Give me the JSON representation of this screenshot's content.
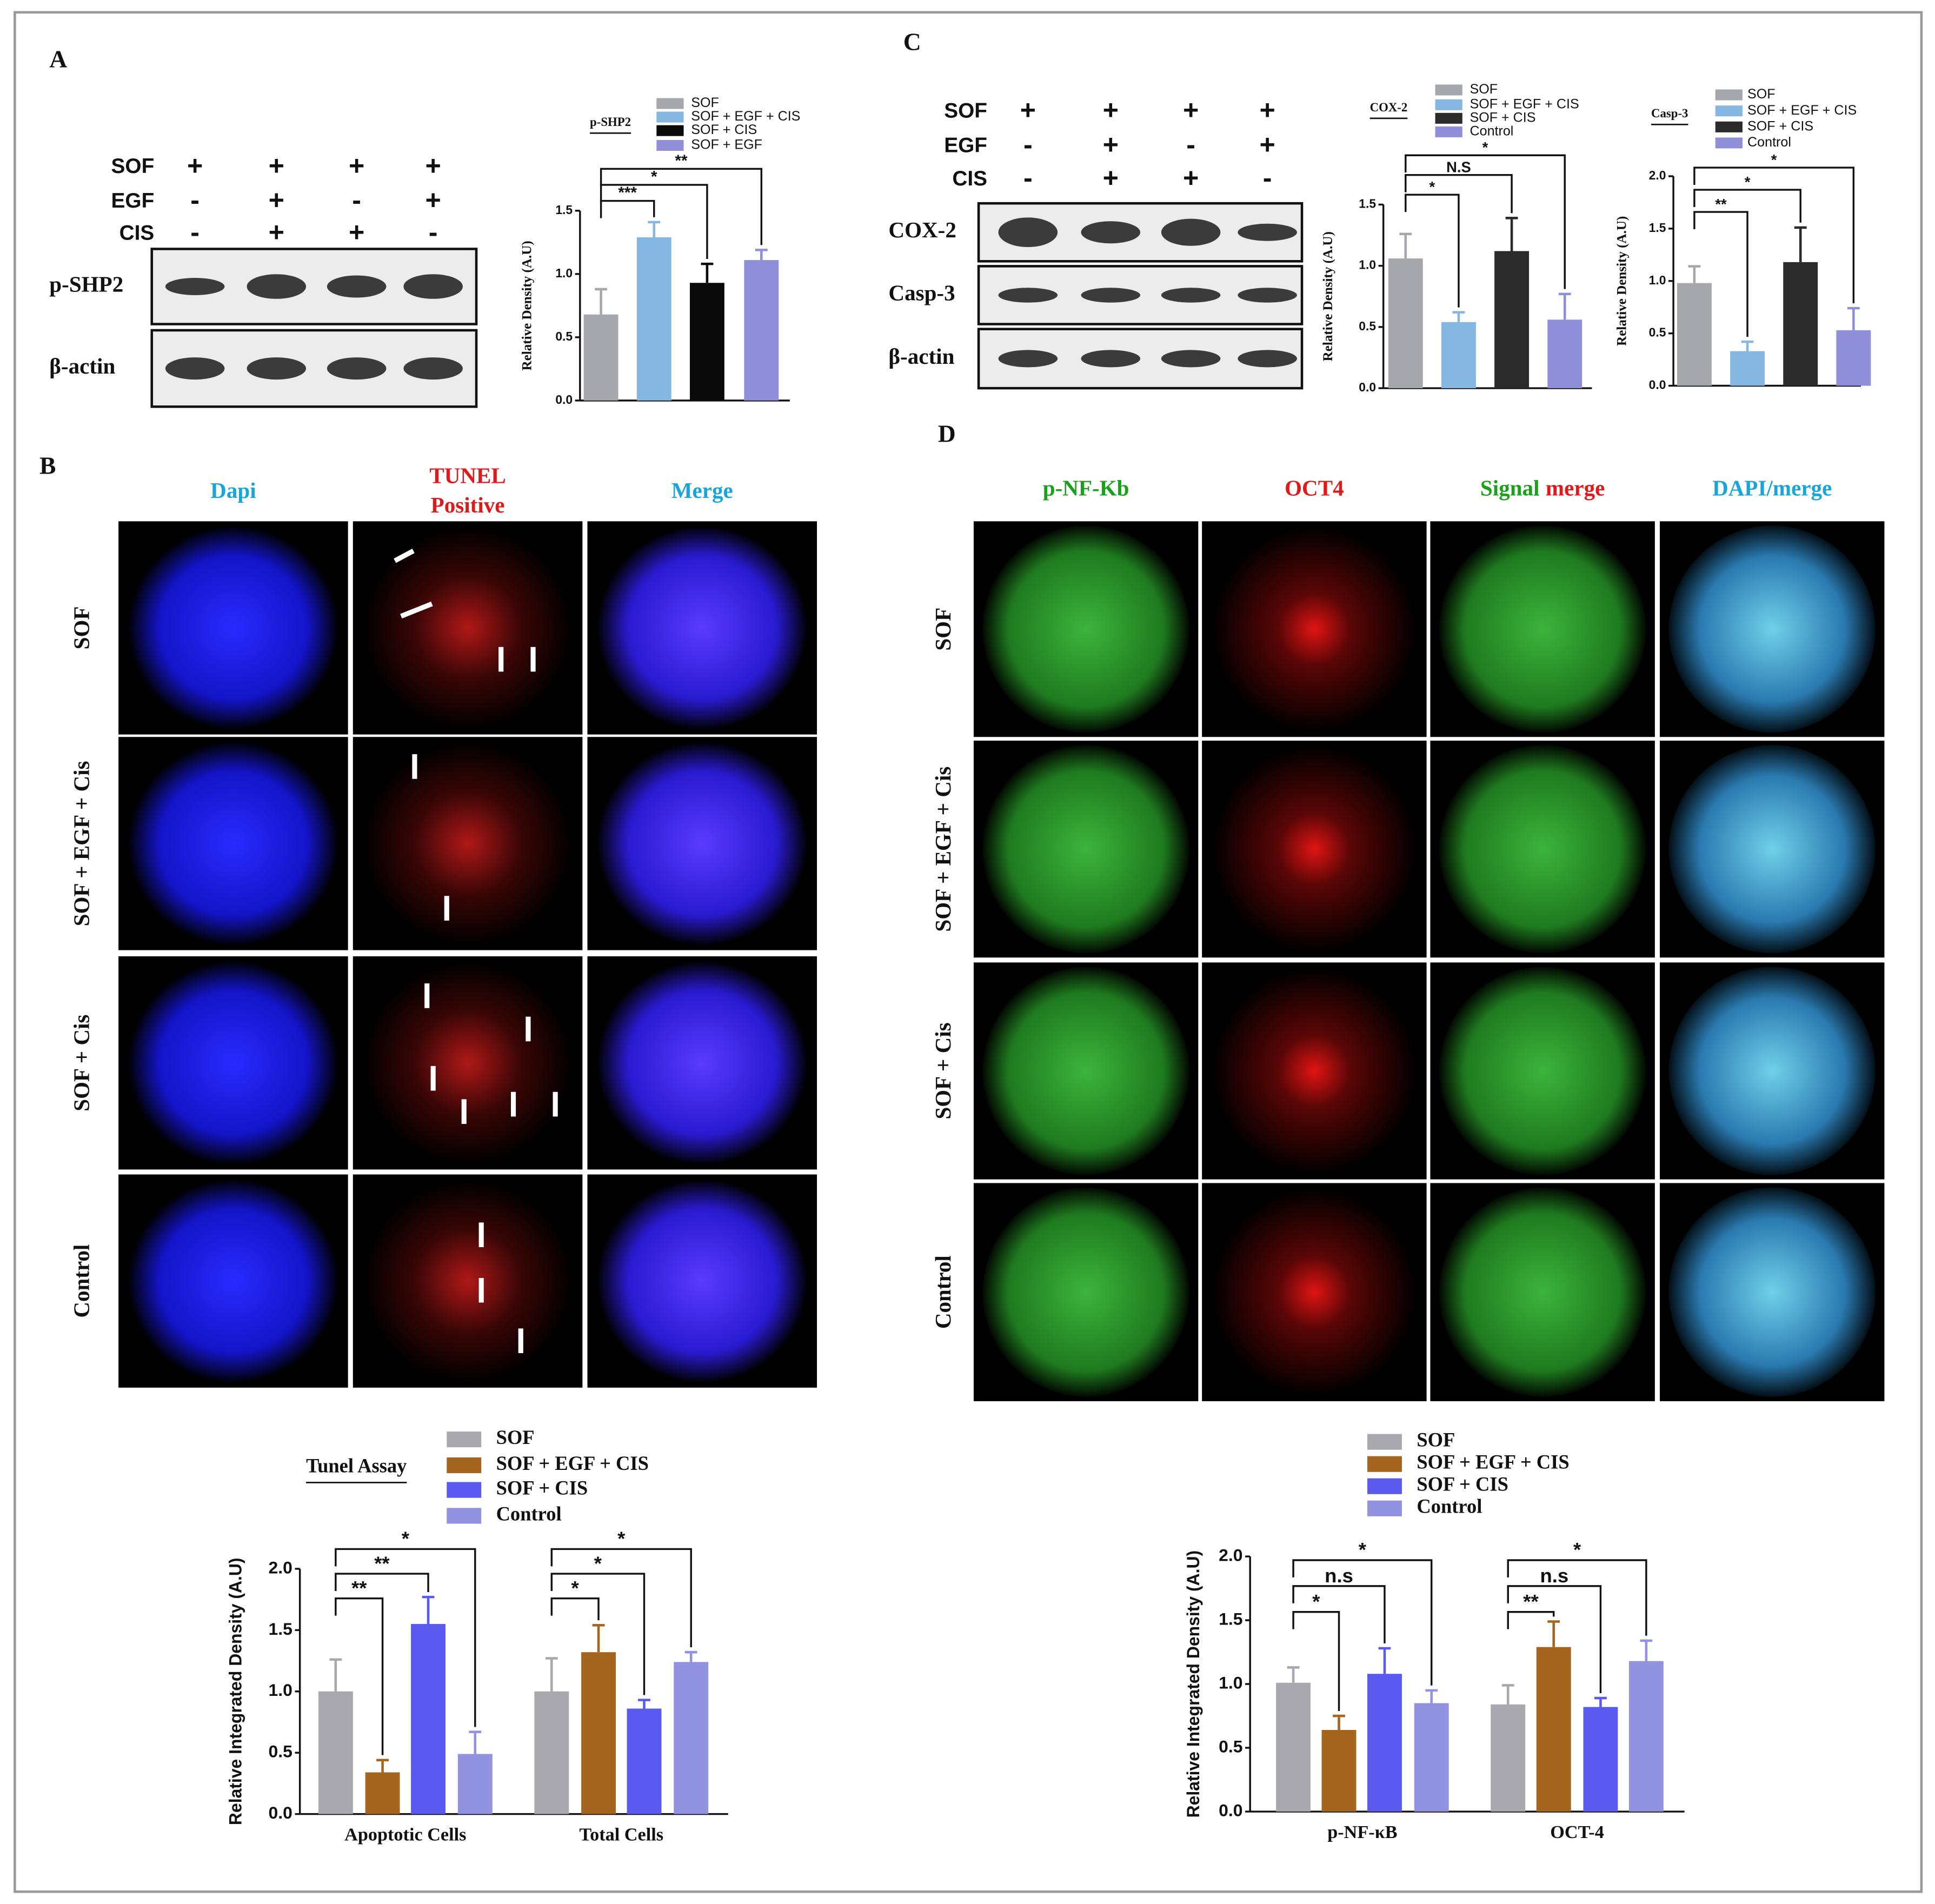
{
  "labels": {
    "a": "A",
    "b": "B",
    "c": "C",
    "d": "D"
  },
  "blot_a": {
    "treatments": [
      {
        "name": "SOF",
        "signs": [
          "+",
          "+",
          "+",
          "+"
        ]
      },
      {
        "name": "EGF",
        "signs": [
          "-",
          "+",
          "-",
          "+"
        ]
      },
      {
        "name": "CIS",
        "signs": [
          "-",
          "+",
          "+",
          "-"
        ]
      }
    ],
    "bands": [
      "p-SHP2",
      "β-actin"
    ]
  },
  "blot_c": {
    "treatments": [
      {
        "name": "SOF",
        "signs": [
          "+",
          "+",
          "+",
          "+"
        ]
      },
      {
        "name": "EGF",
        "signs": [
          "-",
          "+",
          "-",
          "+"
        ]
      },
      {
        "name": "CIS",
        "signs": [
          "-",
          "+",
          "+",
          "-"
        ]
      }
    ],
    "bands": [
      "COX-2",
      "Casp-3",
      "β-actin"
    ]
  },
  "images_b": {
    "columns": [
      [
        "Dapi"
      ],
      [
        "TUNEL",
        "Positive"
      ],
      [
        "Merge"
      ]
    ],
    "rows": [
      "SOF",
      "SOF + EGF + Cis",
      "SOF + Cis",
      "Control"
    ]
  },
  "images_d": {
    "columns": [
      [
        "p-NF-Kb"
      ],
      [
        "OCT4"
      ],
      [
        "Signal",
        "merge"
      ],
      [
        "DAPI/merge"
      ]
    ],
    "rows": [
      "SOF",
      "SOF + EGF + Cis",
      "SOF + Cis",
      "Control"
    ]
  },
  "chart_data": [
    {
      "type": "bar",
      "legend_title": "p-SHP2",
      "ylabel": "Relative Density (A.U)",
      "categories": [
        "SOF",
        "SOF + EGF + CIS",
        "SOF + CIS",
        "SOF + EGF"
      ],
      "colors": [
        "#a6a6ad",
        "#86b6e2",
        "#0a0a0a",
        "#8e8fd8"
      ],
      "values": [
        0.68,
        1.29,
        0.93,
        1.11
      ],
      "errors": [
        0.2,
        0.12,
        0.15,
        0.08
      ],
      "ylim": [
        0,
        1.5
      ],
      "yticks": [
        {
          "value": 0,
          "label": "0.0"
        },
        {
          "value": 0.5,
          "label": "0.5"
        },
        {
          "value": 1,
          "label": "1.0"
        },
        {
          "value": 1.5,
          "label": "1.5"
        }
      ],
      "brackets": [
        {
          "from": 0,
          "to": 1,
          "label": "***"
        },
        {
          "from": 0,
          "to": 2,
          "label": "*"
        },
        {
          "from": 0,
          "to": 3,
          "label": "**"
        }
      ]
    },
    {
      "type": "bar",
      "legend_title": "COX-2",
      "ylabel": "Relative Density (A.U)",
      "categories": [
        "SOF",
        "SOF + EGF + CIS",
        "SOF + CIS",
        "Control"
      ],
      "colors": [
        "#a6a6ad",
        "#86b6e2",
        "#2b2b2b",
        "#8e8fd8"
      ],
      "values": [
        1.06,
        0.54,
        1.12,
        0.56
      ],
      "errors": [
        0.2,
        0.08,
        0.27,
        0.21
      ],
      "ylim": [
        0,
        1.5
      ],
      "yticks": [
        {
          "value": 0,
          "label": "0.0"
        },
        {
          "value": 0.5,
          "label": "0.5"
        },
        {
          "value": 1,
          "label": "1.0"
        },
        {
          "value": 1.5,
          "label": "1.5"
        }
      ],
      "brackets": [
        {
          "from": 0,
          "to": 1,
          "label": "*"
        },
        {
          "from": 0,
          "to": 2,
          "label": "N.S"
        },
        {
          "from": 0,
          "to": 3,
          "label": "*"
        }
      ]
    },
    {
      "type": "bar",
      "legend_title": "Casp-3",
      "ylabel": "Relative Density (A.U)",
      "categories": [
        "SOF",
        "SOF + EGF + CIS",
        "SOF + CIS",
        "Control"
      ],
      "colors": [
        "#a6a6ad",
        "#86b6e2",
        "#2b2b2b",
        "#8e8fd8"
      ],
      "values": [
        0.98,
        0.33,
        1.18,
        0.53
      ],
      "errors": [
        0.16,
        0.09,
        0.33,
        0.21
      ],
      "ylim": [
        0,
        2
      ],
      "yticks": [
        {
          "value": 0,
          "label": "0.0"
        },
        {
          "value": 0.5,
          "label": "0.5"
        },
        {
          "value": 1,
          "label": "1.0"
        },
        {
          "value": 1.5,
          "label": "1.5"
        },
        {
          "value": 2,
          "label": "2.0"
        }
      ],
      "brackets": [
        {
          "from": 0,
          "to": 1,
          "label": "**"
        },
        {
          "from": 0,
          "to": 2,
          "label": "*"
        },
        {
          "from": 0,
          "to": 3,
          "label": "*"
        }
      ]
    },
    {
      "type": "grouped_bar",
      "legend_title": "Tunel Assay",
      "ylabel": "Relative Integrated Density (A.U)",
      "categories": [
        "Apoptotic Cells",
        "Total Cells"
      ],
      "series": [
        {
          "name": "SOF",
          "color": "#a8a8ae",
          "values": [
            1.0,
            1.0
          ],
          "errors": [
            0.26,
            0.27
          ]
        },
        {
          "name": "SOF + EGF + CIS",
          "color": "#a5651f",
          "values": [
            0.34,
            1.32
          ],
          "errors": [
            0.1,
            0.22
          ]
        },
        {
          "name": "SOF + CIS",
          "color": "#5a5af0",
          "values": [
            1.55,
            0.86
          ],
          "errors": [
            0.22,
            0.07
          ]
        },
        {
          "name": "Control",
          "color": "#9192e0",
          "values": [
            0.49,
            1.24
          ],
          "errors": [
            0.18,
            0.08
          ]
        }
      ],
      "ylim": [
        0,
        2
      ],
      "yticks": [
        {
          "value": 0,
          "label": "0.0"
        },
        {
          "value": 0.5,
          "label": "0.5"
        },
        {
          "value": 1,
          "label": "1.0"
        },
        {
          "value": 1.5,
          "label": "1.5"
        },
        {
          "value": 2,
          "label": "2.0"
        }
      ],
      "brackets": [
        {
          "group": 0,
          "from": 0,
          "to": 1,
          "label": "**"
        },
        {
          "group": 0,
          "from": 0,
          "to": 2,
          "label": "**"
        },
        {
          "group": 0,
          "from": 0,
          "to": 3,
          "label": "*"
        },
        {
          "group": 1,
          "from": 0,
          "to": 1,
          "label": "*"
        },
        {
          "group": 1,
          "from": 0,
          "to": 2,
          "label": "*"
        },
        {
          "group": 1,
          "from": 0,
          "to": 3,
          "label": "*"
        }
      ]
    },
    {
      "type": "grouped_bar",
      "ylabel": "Relative Integrated Density (A.U)",
      "categories": [
        "p-NF-κB",
        "OCT-4"
      ],
      "series": [
        {
          "name": "SOF",
          "color": "#a8a8ae",
          "values": [
            1.01,
            0.84
          ],
          "errors": [
            0.12,
            0.15
          ]
        },
        {
          "name": "SOF + EGF + CIS",
          "color": "#a5651f",
          "values": [
            0.64,
            1.29
          ],
          "errors": [
            0.11,
            0.2
          ]
        },
        {
          "name": "SOF + CIS",
          "color": "#5a5af0",
          "values": [
            1.08,
            0.82
          ],
          "errors": [
            0.2,
            0.07
          ]
        },
        {
          "name": "Control",
          "color": "#9192e0",
          "values": [
            0.85,
            1.18
          ],
          "errors": [
            0.1,
            0.16
          ]
        }
      ],
      "ylim": [
        0,
        2
      ],
      "yticks": [
        {
          "value": 0,
          "label": "0.0"
        },
        {
          "value": 0.5,
          "label": "0.5"
        },
        {
          "value": 1,
          "label": "1.0"
        },
        {
          "value": 1.5,
          "label": "1.5"
        },
        {
          "value": 2,
          "label": "2.0"
        }
      ],
      "brackets": [
        {
          "group": 0,
          "from": 0,
          "to": 1,
          "label": "*"
        },
        {
          "group": 0,
          "from": 0,
          "to": 2,
          "label": "n.s"
        },
        {
          "group": 0,
          "from": 0,
          "to": 3,
          "label": "*"
        },
        {
          "group": 1,
          "from": 0,
          "to": 1,
          "label": "**"
        },
        {
          "group": 1,
          "from": 0,
          "to": 2,
          "label": "n.s"
        },
        {
          "group": 1,
          "from": 0,
          "to": 3,
          "label": "*"
        }
      ]
    }
  ]
}
